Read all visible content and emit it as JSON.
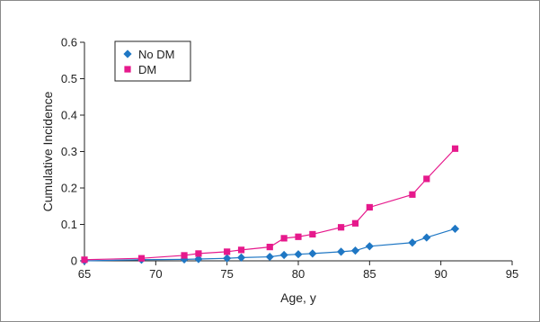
{
  "chart_data": {
    "type": "line",
    "title": "",
    "xlabel": "Age, y",
    "ylabel": "Cumulative Incidence",
    "xlim": [
      65,
      95
    ],
    "ylim": [
      0,
      0.6
    ],
    "xticks": [
      65,
      70,
      75,
      80,
      85,
      90,
      95
    ],
    "yticks": [
      0,
      0.1,
      0.2,
      0.3,
      0.4,
      0.5,
      0.6
    ],
    "xtick_labels": [
      "65",
      "70",
      "75",
      "80",
      "85",
      "90",
      "95"
    ],
    "ytick_labels": [
      "0",
      "0.1",
      "0.2",
      "0.3",
      "0.4",
      "0.5",
      "0.6"
    ],
    "grid": false,
    "legend_position": "top-left",
    "series": [
      {
        "name": "No DM",
        "marker": "diamond",
        "color": "#1f77c4",
        "x": [
          65,
          69,
          72,
          73,
          75,
          76,
          78,
          79,
          80,
          81,
          83,
          84,
          85,
          88,
          89,
          91
        ],
        "y": [
          0,
          0.003,
          0.004,
          0.005,
          0.007,
          0.009,
          0.011,
          0.016,
          0.018,
          0.02,
          0.025,
          0.028,
          0.04,
          0.05,
          0.064,
          0.088
        ]
      },
      {
        "name": "DM",
        "marker": "square",
        "color": "#e6198c",
        "x": [
          65,
          69,
          72,
          73,
          75,
          76,
          78,
          79,
          80,
          81,
          83,
          84,
          85,
          88,
          89,
          91
        ],
        "y": [
          0.003,
          0.007,
          0.015,
          0.02,
          0.025,
          0.03,
          0.038,
          0.062,
          0.066,
          0.073,
          0.092,
          0.103,
          0.147,
          0.182,
          0.225,
          0.308
        ]
      }
    ]
  }
}
